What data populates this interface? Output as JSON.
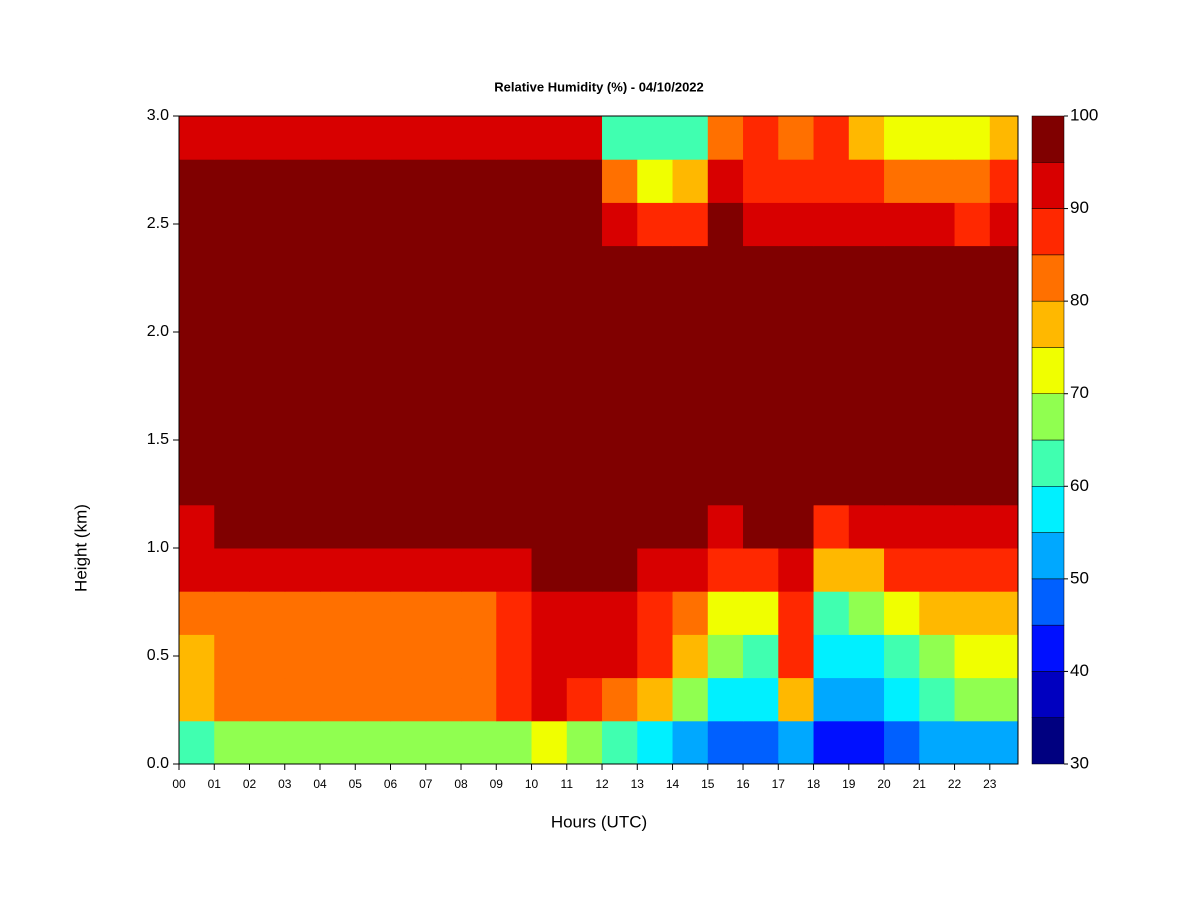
{
  "chart_data": {
    "type": "heatmap",
    "title": "Relative Humidity (%) - 04/10/2022",
    "x_label": "Hours (UTC)",
    "y_label": "Height (km)",
    "x": [
      0,
      1,
      2,
      3,
      4,
      5,
      6,
      7,
      8,
      9,
      10,
      11,
      12,
      13,
      14,
      15,
      16,
      17,
      18,
      19,
      20,
      21,
      22,
      23
    ],
    "y": [
      0,
      0.2,
      0.4,
      0.6,
      0.8,
      1.0,
      1.2,
      1.4,
      1.6,
      1.8,
      2.0,
      2.2,
      2.4,
      2.6,
      2.8
    ],
    "z": [
      [
        62,
        68,
        68,
        68,
        68,
        68,
        68,
        68,
        68,
        68,
        72,
        68,
        60,
        56,
        52,
        48,
        48,
        50,
        42,
        44,
        46,
        50,
        52,
        54
      ],
      [
        78,
        82,
        82,
        82,
        82,
        82,
        82,
        82,
        82,
        88,
        92,
        88,
        82,
        76,
        68,
        58,
        56,
        75,
        52,
        54,
        58,
        62,
        65,
        66
      ],
      [
        75,
        80,
        80,
        80,
        80,
        80,
        80,
        80,
        80,
        88,
        92,
        93,
        90,
        85,
        78,
        65,
        62,
        85,
        55,
        58,
        62,
        68,
        70,
        72
      ],
      [
        80,
        82,
        82,
        82,
        82,
        82,
        82,
        82,
        82,
        88,
        92,
        94,
        92,
        88,
        84,
        72,
        70,
        88,
        62,
        65,
        72,
        75,
        75,
        78
      ],
      [
        90,
        90,
        90,
        90,
        90,
        90,
        90,
        90,
        90,
        92,
        96,
        97,
        95,
        93,
        90,
        85,
        88,
        92,
        75,
        78,
        85,
        86,
        86,
        88
      ],
      [
        94,
        96,
        96,
        96,
        96,
        96,
        96,
        96,
        96,
        96,
        96,
        96,
        96,
        96,
        96,
        93,
        95,
        95,
        88,
        90,
        93,
        94,
        94,
        94
      ],
      [
        98,
        98,
        98,
        98,
        98,
        98,
        98,
        98,
        98,
        98,
        98,
        98,
        98,
        98,
        98,
        98,
        98,
        98,
        98,
        98,
        98,
        98,
        98,
        98
      ],
      [
        98,
        98,
        98,
        98,
        98,
        98,
        98,
        98,
        98,
        98,
        98,
        98,
        98,
        98,
        98,
        98,
        98,
        98,
        98,
        98,
        98,
        98,
        98,
        98
      ],
      [
        98,
        98,
        98,
        98,
        98,
        98,
        98,
        98,
        98,
        98,
        98,
        98,
        98,
        98,
        98,
        98,
        98,
        98,
        98,
        98,
        98,
        98,
        98,
        98
      ],
      [
        98,
        98,
        98,
        98,
        98,
        98,
        98,
        98,
        98,
        98,
        98,
        98,
        98,
        98,
        98,
        98,
        98,
        98,
        98,
        98,
        98,
        98,
        98,
        98
      ],
      [
        98,
        98,
        98,
        98,
        98,
        98,
        98,
        98,
        98,
        98,
        98,
        98,
        98,
        98,
        98,
        98,
        98,
        98,
        98,
        98,
        98,
        98,
        98,
        98
      ],
      [
        97,
        97,
        97,
        97,
        97,
        97,
        97,
        97,
        97,
        97,
        97,
        97,
        97,
        97,
        97,
        97,
        97,
        97,
        97,
        97,
        97,
        97,
        97,
        97
      ],
      [
        97,
        97,
        97,
        97,
        97,
        97,
        97,
        97,
        97,
        97,
        97,
        97,
        90,
        86,
        86,
        97,
        92,
        92,
        90,
        90,
        90,
        90,
        88,
        90
      ],
      [
        96,
        96,
        96,
        96,
        96,
        96,
        96,
        96,
        96,
        96,
        96,
        96,
        80,
        72,
        75,
        92,
        88,
        88,
        88,
        85,
        82,
        80,
        82,
        85
      ],
      [
        90,
        90,
        90,
        90,
        90,
        90,
        90,
        90,
        90,
        90,
        90,
        90,
        62,
        62,
        62,
        80,
        85,
        80,
        85,
        75,
        72,
        70,
        70,
        75
      ]
    ],
    "xlim": [
      0,
      23.8
    ],
    "ylim": [
      0,
      3
    ],
    "xticks": [
      {
        "value": 0,
        "label": "00"
      },
      {
        "value": 1,
        "label": "01"
      },
      {
        "value": 2,
        "label": "02"
      },
      {
        "value": 3,
        "label": "03"
      },
      {
        "value": 4,
        "label": "04"
      },
      {
        "value": 5,
        "label": "05"
      },
      {
        "value": 6,
        "label": "06"
      },
      {
        "value": 7,
        "label": "07"
      },
      {
        "value": 8,
        "label": "08"
      },
      {
        "value": 9,
        "label": "09"
      },
      10,
      11,
      12,
      13,
      14,
      15,
      16,
      17,
      18,
      19,
      20,
      21,
      22,
      23
    ],
    "yticks": [
      {
        "value": 0,
        "label": "0.0"
      },
      {
        "value": 0.5,
        "label": "0.5"
      },
      {
        "value": 1,
        "label": "1.0"
      },
      {
        "value": 1.5,
        "label": "1.5"
      },
      {
        "value": 2,
        "label": "2.0"
      },
      {
        "value": 2.5,
        "label": "2.5"
      },
      {
        "value": 3,
        "label": "3.0"
      }
    ],
    "colorbar": {
      "levels": [
        30,
        35,
        40,
        45,
        50,
        55,
        60,
        65,
        70,
        75,
        80,
        85,
        90,
        95,
        100
      ],
      "colors": [
        "#000080",
        "#0000c0",
        "#0010ff",
        "#0060ff",
        "#00a8ff",
        "#00f0ff",
        "#40ffb0",
        "#90ff50",
        "#f0ff00",
        "#ffb800",
        "#ff7000",
        "#ff2800",
        "#d80000",
        "#800000"
      ],
      "ticks": [
        30,
        40,
        50,
        60,
        70,
        80,
        90,
        100
      ]
    }
  }
}
